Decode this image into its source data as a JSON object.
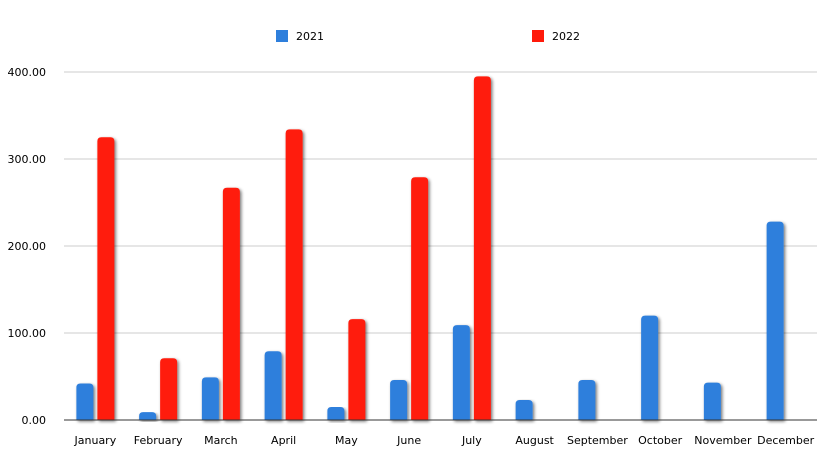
{
  "chart_data": {
    "type": "bar",
    "categories": [
      "January",
      "February",
      "March",
      "April",
      "May",
      "June",
      "July",
      "August",
      "September",
      "October",
      "November",
      "December"
    ],
    "series": [
      {
        "name": "2021",
        "color": "#2e7fdc",
        "values": [
          42,
          9,
          49,
          79,
          15,
          46,
          109,
          23,
          46,
          120,
          43,
          228
        ]
      },
      {
        "name": "2022",
        "color": "#ff1a0a",
        "values": [
          325,
          71,
          267,
          334,
          116,
          279,
          395,
          null,
          null,
          null,
          null,
          null
        ]
      }
    ],
    "ylim": [
      0,
      400
    ],
    "yticks": [
      "0.00",
      "100.00",
      "200.00",
      "300.00",
      "400.00"
    ],
    "grid": true,
    "legend_position": "top-center",
    "title": "",
    "xlabel": "",
    "ylabel": ""
  }
}
